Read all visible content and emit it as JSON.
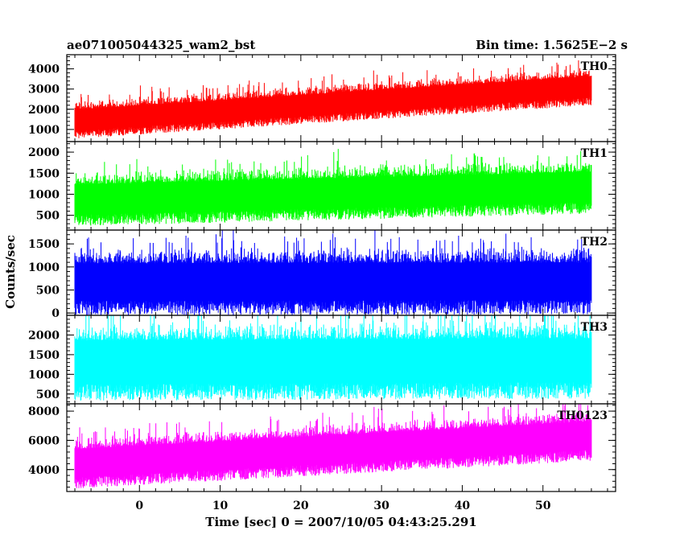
{
  "header": {
    "title": "ae071005044325_wam2_bst",
    "bin_time": "Bin time: 1.5625E−2 s"
  },
  "chart_data": {
    "type": "line",
    "title": "ae071005044325_wam2_bst",
    "subtitle": "Bin time: 1.5625E−2 s",
    "xlabel": "Time [sec] 0 = 2007/10/05 04:43:25.291",
    "ylabel": "Counts/sec",
    "xlim": [
      -9,
      59
    ],
    "x_range": [
      -8,
      56
    ],
    "x_ticks": [
      0,
      10,
      20,
      30,
      40,
      50
    ],
    "grid": false,
    "legend": "none",
    "panels": [
      {
        "label": "TH0",
        "color": "#ff0000",
        "ylim": [
          400,
          4700
        ],
        "y_ticks": [
          1000,
          2000,
          3000,
          4000
        ],
        "trend_start": 1500,
        "trend_end": 3150,
        "spread": 1600
      },
      {
        "label": "TH1",
        "color": "#00ff00",
        "ylim": [
          150,
          2250
        ],
        "y_ticks": [
          500,
          1000,
          1500,
          2000
        ],
        "trend_start": 900,
        "trend_end": 1200,
        "spread": 1100
      },
      {
        "label": "TH2",
        "color": "#0000ff",
        "ylim": [
          -50,
          1800
        ],
        "y_ticks": [
          0,
          500,
          1000,
          1500
        ],
        "trend_start": 700,
        "trend_end": 720,
        "spread": 1250
      },
      {
        "label": "TH3",
        "color": "#00ffff",
        "ylim": [
          250,
          2500
        ],
        "y_ticks": [
          500,
          1000,
          1500,
          2000
        ],
        "trend_start": 1350,
        "trend_end": 1400,
        "spread": 1700
      },
      {
        "label": "TH0123",
        "color": "#ff00ff",
        "ylim": [
          2500,
          8500
        ],
        "y_ticks": [
          4000,
          6000,
          8000
        ],
        "trend_start": 4500,
        "trend_end": 6400,
        "spread": 3000
      }
    ]
  }
}
